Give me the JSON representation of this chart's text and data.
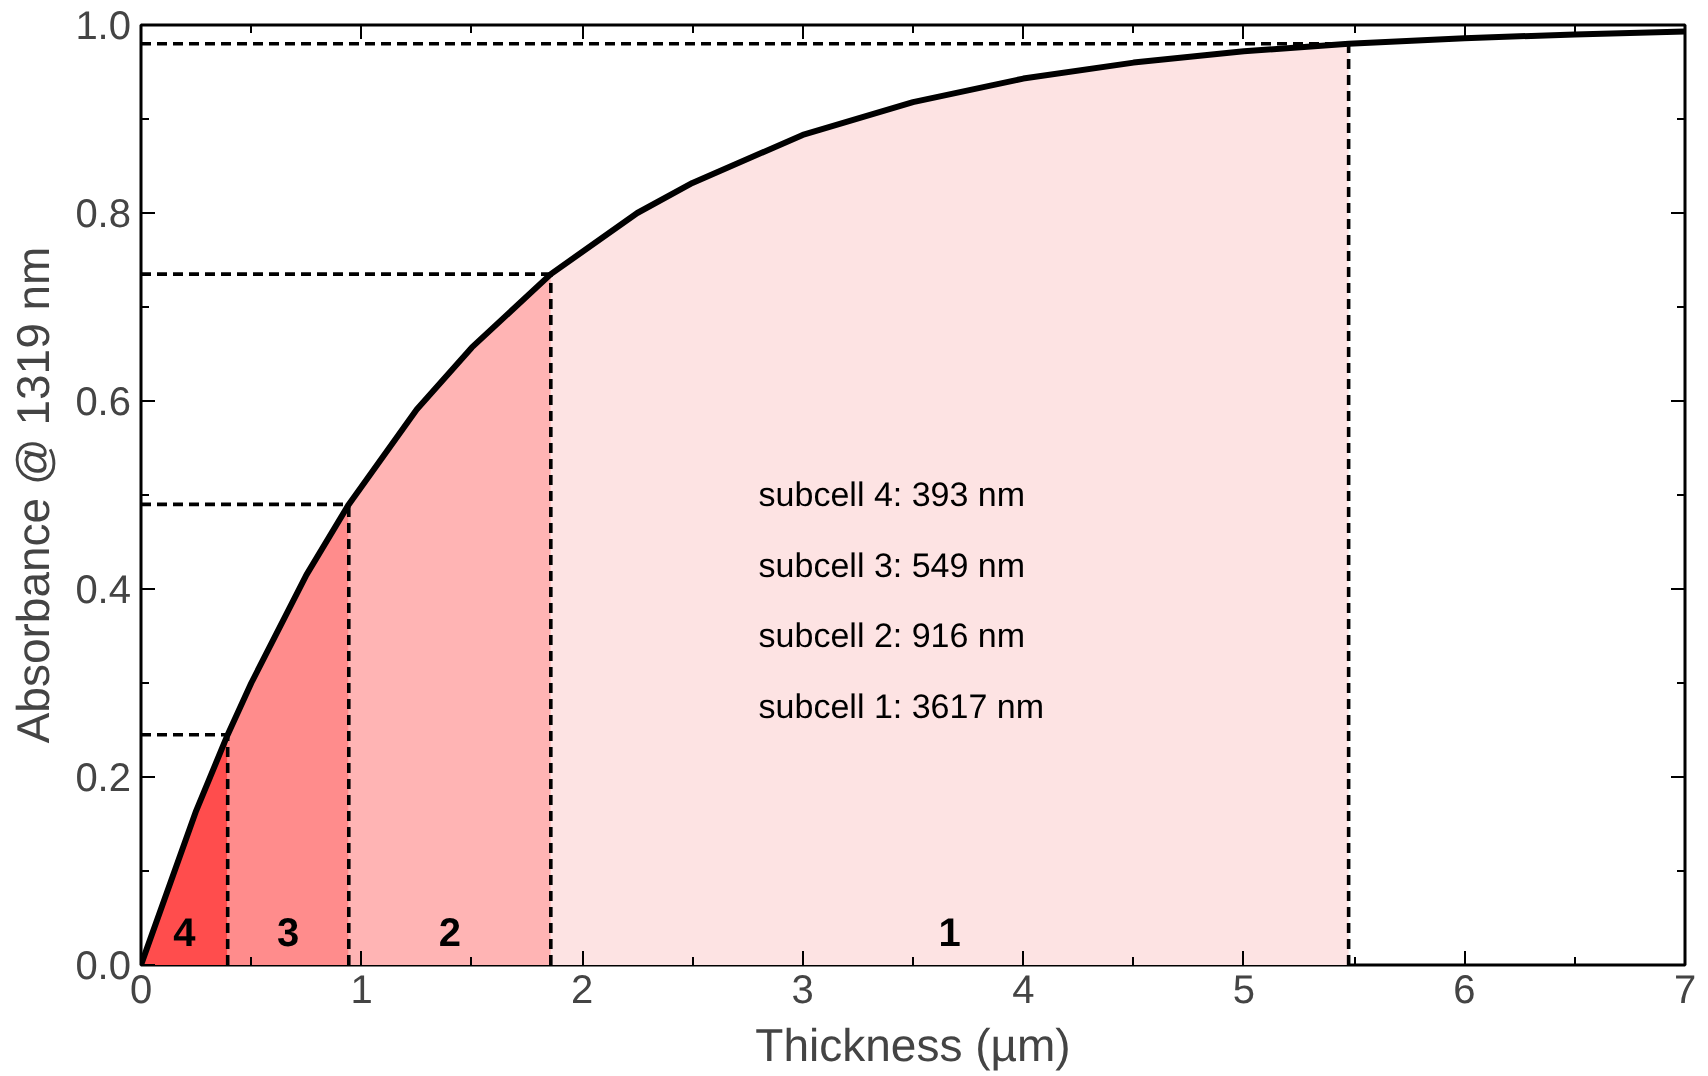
{
  "chart_data": {
    "type": "line",
    "xlabel": "Thickness (µm)",
    "ylabel": "Absorbance @ 1319 nm",
    "xlim": [
      0,
      7
    ],
    "ylim": [
      0,
      1
    ],
    "xticks": [
      0,
      1,
      2,
      3,
      4,
      5,
      6,
      7
    ],
    "yticks": [
      {
        "value": 0,
        "label": "0.0"
      },
      {
        "value": 0.2,
        "label": "0.2"
      },
      {
        "value": 0.4,
        "label": "0.4"
      },
      {
        "value": 0.6,
        "label": "0.6"
      },
      {
        "value": 0.8,
        "label": "0.8"
      },
      {
        "value": 1,
        "label": "1.0"
      }
    ],
    "grid": false,
    "series": [
      {
        "type": "area",
        "color": "#ff4d4d",
        "x": [
          0,
          0.25,
          0.393
        ],
        "values": [
          0,
          0.164,
          0.245
        ]
      },
      {
        "type": "area",
        "color": "#ff8c8c",
        "x": [
          0.393,
          0.5,
          0.75,
          0.942
        ],
        "values": [
          0.245,
          0.3,
          0.415,
          0.49
        ]
      },
      {
        "type": "area",
        "color": "#ffb4b4",
        "x": [
          0.942,
          1.25,
          1.5,
          1.858
        ],
        "values": [
          0.49,
          0.591,
          0.657,
          0.735
        ]
      },
      {
        "type": "area",
        "color": "#fde3e3",
        "x": [
          1.858,
          2.25,
          2.5,
          3,
          3.5,
          4,
          4.5,
          5,
          5.475
        ],
        "values": [
          0.735,
          0.8,
          0.832,
          0.883,
          0.918,
          0.943,
          0.96,
          0.972,
          0.98
        ]
      },
      {
        "type": "line",
        "color": "#000000",
        "line_style": "dashed",
        "x": [
          0,
          0.393
        ],
        "values": [
          0.245,
          0.245
        ]
      },
      {
        "type": "line",
        "color": "#000000",
        "line_style": "dashed",
        "x": [
          0,
          0.942
        ],
        "values": [
          0.49,
          0.49
        ]
      },
      {
        "type": "line",
        "color": "#000000",
        "line_style": "dashed",
        "x": [
          0,
          1.858
        ],
        "values": [
          0.735,
          0.735
        ]
      },
      {
        "type": "line",
        "color": "#000000",
        "line_style": "dashed",
        "x": [
          0,
          5.475
        ],
        "values": [
          0.98,
          0.98
        ]
      },
      {
        "color": "#000000",
        "line_style": "solid",
        "x": [
          0,
          0.25,
          0.393,
          0.5,
          0.75,
          0.942,
          1.25,
          1.5,
          1.858,
          2.25,
          2.5,
          3,
          3.5,
          4,
          4.5,
          5,
          5.475,
          6,
          6.5,
          7
        ],
        "values": [
          0,
          0.164,
          0.245,
          0.3,
          0.415,
          0.49,
          0.591,
          0.657,
          0.735,
          0.8,
          0.832,
          0.883,
          0.918,
          0.943,
          0.96,
          0.972,
          0.98,
          0.986,
          0.99,
          0.993
        ]
      }
    ],
    "ref_lines": [
      {
        "axis": "x",
        "value": 0.393,
        "color": "#000000",
        "line_style": "dashed"
      },
      {
        "axis": "x",
        "value": 0.942,
        "color": "#000000",
        "line_style": "dashed"
      },
      {
        "axis": "x",
        "value": 1.858,
        "color": "#000000",
        "line_style": "dashed"
      },
      {
        "axis": "x",
        "value": 5.475,
        "color": "#000000",
        "line_style": "dashed"
      }
    ],
    "annotations": [
      "4",
      "3",
      "2",
      "1",
      "subcell 4:  393 nm",
      "subcell 3:  549 nm",
      "subcell 2:  916 nm",
      "subcell 1:  3617 nm"
    ]
  }
}
